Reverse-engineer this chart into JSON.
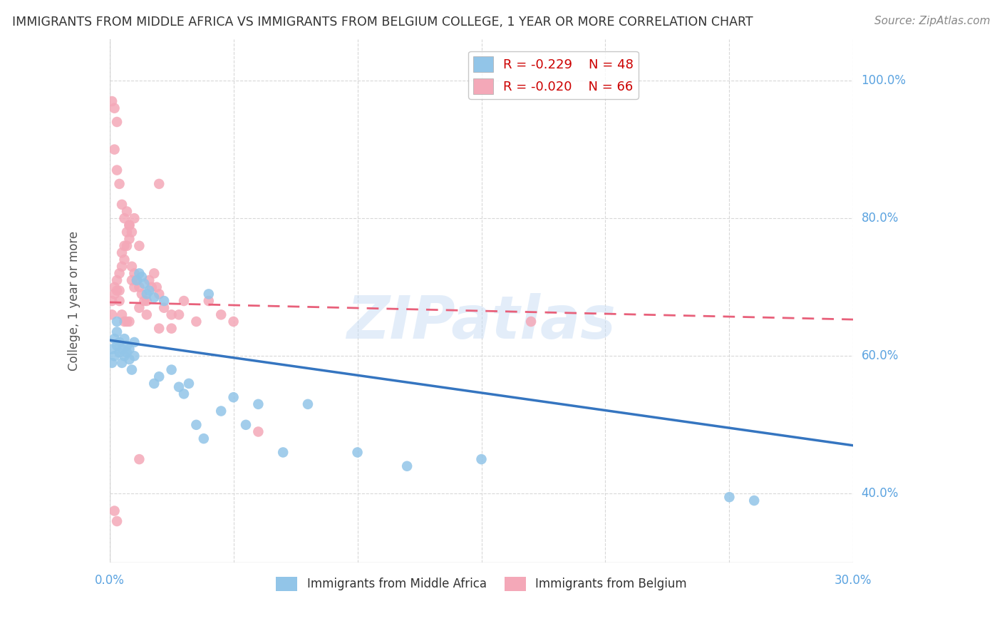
{
  "title": "IMMIGRANTS FROM MIDDLE AFRICA VS IMMIGRANTS FROM BELGIUM COLLEGE, 1 YEAR OR MORE CORRELATION CHART",
  "source": "Source: ZipAtlas.com",
  "ylabel": "College, 1 year or more",
  "xlim": [
    0.0,
    0.3
  ],
  "ylim": [
    0.3,
    1.06
  ],
  "yticks": [
    0.4,
    0.6,
    0.8,
    1.0
  ],
  "ytick_labels": [
    "40.0%",
    "60.0%",
    "80.0%",
    "100.0%"
  ],
  "xtick_positions": [
    0.0,
    0.05,
    0.1,
    0.15,
    0.2,
    0.25,
    0.3
  ],
  "blue_R": -0.229,
  "blue_N": 48,
  "pink_R": -0.02,
  "pink_N": 66,
  "blue_color": "#92C5E8",
  "pink_color": "#F4A8B8",
  "blue_line_color": "#3575C0",
  "pink_line_color": "#E8607A",
  "legend_label_blue": "Immigrants from Middle Africa",
  "legend_label_pink": "Immigrants from Belgium",
  "blue_trend_x0": 0.0,
  "blue_trend_y0": 0.623,
  "blue_trend_x1": 0.3,
  "blue_trend_y1": 0.47,
  "pink_trend_x0": 0.0,
  "pink_trend_y0": 0.678,
  "pink_trend_x1": 0.3,
  "pink_trend_y1": 0.653,
  "blue_scatter_x": [
    0.001,
    0.001,
    0.002,
    0.002,
    0.003,
    0.003,
    0.003,
    0.004,
    0.004,
    0.005,
    0.005,
    0.006,
    0.006,
    0.007,
    0.007,
    0.008,
    0.008,
    0.009,
    0.01,
    0.01,
    0.011,
    0.012,
    0.013,
    0.014,
    0.015,
    0.016,
    0.018,
    0.018,
    0.02,
    0.022,
    0.025,
    0.028,
    0.03,
    0.032,
    0.035,
    0.038,
    0.04,
    0.045,
    0.05,
    0.055,
    0.06,
    0.07,
    0.08,
    0.1,
    0.12,
    0.15,
    0.25,
    0.26
  ],
  "blue_scatter_y": [
    0.61,
    0.59,
    0.625,
    0.6,
    0.615,
    0.635,
    0.65,
    0.605,
    0.62,
    0.59,
    0.61,
    0.6,
    0.625,
    0.615,
    0.605,
    0.595,
    0.61,
    0.58,
    0.62,
    0.6,
    0.71,
    0.72,
    0.715,
    0.705,
    0.69,
    0.695,
    0.685,
    0.56,
    0.57,
    0.68,
    0.58,
    0.555,
    0.545,
    0.56,
    0.5,
    0.48,
    0.69,
    0.52,
    0.54,
    0.5,
    0.53,
    0.46,
    0.53,
    0.46,
    0.44,
    0.45,
    0.395,
    0.39
  ],
  "pink_scatter_x": [
    0.001,
    0.001,
    0.002,
    0.002,
    0.002,
    0.003,
    0.003,
    0.003,
    0.004,
    0.004,
    0.004,
    0.005,
    0.005,
    0.005,
    0.006,
    0.006,
    0.006,
    0.007,
    0.007,
    0.007,
    0.008,
    0.008,
    0.008,
    0.009,
    0.009,
    0.01,
    0.01,
    0.011,
    0.012,
    0.012,
    0.013,
    0.014,
    0.015,
    0.015,
    0.016,
    0.017,
    0.018,
    0.019,
    0.02,
    0.02,
    0.022,
    0.025,
    0.025,
    0.028,
    0.03,
    0.035,
    0.04,
    0.045,
    0.05,
    0.06,
    0.002,
    0.003,
    0.004,
    0.005,
    0.006,
    0.007,
    0.008,
    0.009,
    0.01,
    0.012,
    0.001,
    0.002,
    0.003,
    0.02,
    0.17,
    0.012
  ],
  "pink_scatter_y": [
    0.68,
    0.66,
    0.7,
    0.69,
    0.375,
    0.71,
    0.695,
    0.36,
    0.72,
    0.695,
    0.68,
    0.75,
    0.73,
    0.66,
    0.76,
    0.74,
    0.65,
    0.78,
    0.76,
    0.65,
    0.79,
    0.77,
    0.65,
    0.73,
    0.71,
    0.72,
    0.7,
    0.71,
    0.7,
    0.67,
    0.69,
    0.68,
    0.68,
    0.66,
    0.71,
    0.7,
    0.72,
    0.7,
    0.69,
    0.64,
    0.67,
    0.66,
    0.64,
    0.66,
    0.68,
    0.65,
    0.68,
    0.66,
    0.65,
    0.49,
    0.9,
    0.87,
    0.85,
    0.82,
    0.8,
    0.81,
    0.79,
    0.78,
    0.8,
    0.76,
    0.97,
    0.96,
    0.94,
    0.85,
    0.65,
    0.45
  ],
  "watermark": "ZIPatlas",
  "background_color": "#ffffff",
  "grid_color": "#d8d8d8",
  "axis_color": "#5BA3E0",
  "ylabel_color": "#555555"
}
